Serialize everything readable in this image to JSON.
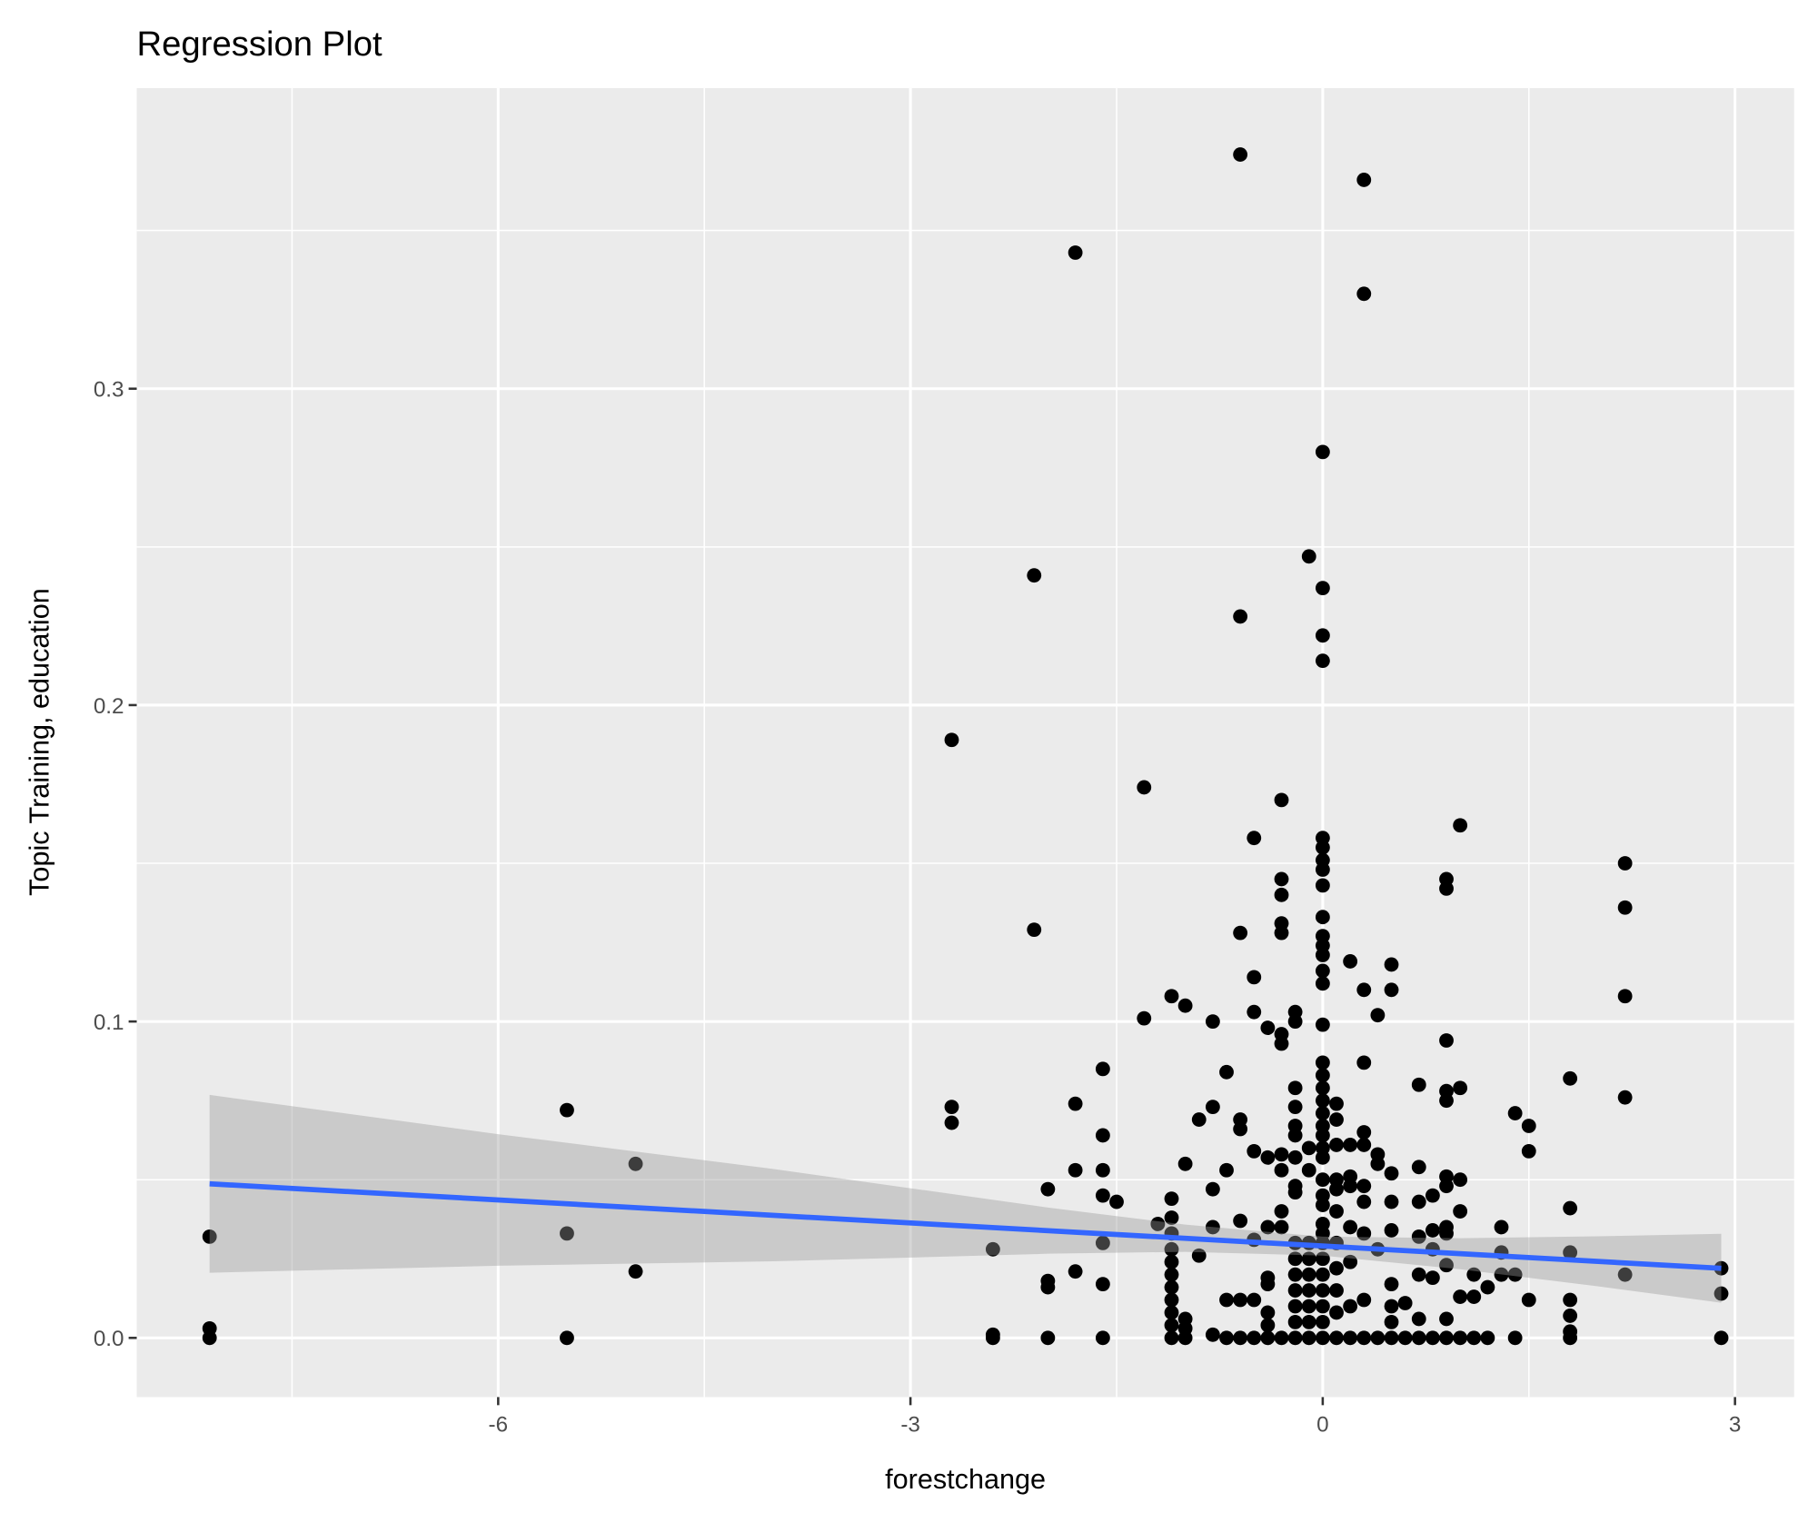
{
  "chart_data": {
    "type": "scatter",
    "title": "Regression Plot",
    "xlabel": "forestchange",
    "ylabel": "Topic Training, education",
    "xlim": [
      -8.63,
      3.43
    ],
    "ylim": [
      -0.0187,
      0.395
    ],
    "x_ticks": [
      -6,
      -3,
      0,
      3
    ],
    "x_tick_labels": [
      "-6",
      "-3",
      "0",
      "3"
    ],
    "x_minor_ticks": [
      -7.5,
      -4.5,
      -1.5,
      1.5
    ],
    "y_ticks": [
      0.0,
      0.1,
      0.2,
      0.3
    ],
    "y_tick_labels": [
      "0.0",
      "0.1",
      "0.2",
      "0.3"
    ],
    "y_minor_ticks": [
      0.05,
      0.15,
      0.25,
      0.35
    ],
    "grid": true,
    "legend": "none",
    "colors": {
      "panel": "#EBEBEB",
      "grid": "#FFFFFF",
      "points": "#000000",
      "fit_line": "#3366FF",
      "ci_band": "#999999"
    },
    "points_by_x": [
      [
        -8.1,
        [
          0.032,
          0.003,
          0.0
        ]
      ],
      [
        -5.5,
        [
          0.072,
          0.033,
          0.0
        ]
      ],
      [
        -5.0,
        [
          0.055,
          0.021
        ]
      ],
      [
        -2.7,
        [
          0.189,
          0.073,
          0.068
        ]
      ],
      [
        -2.4,
        [
          0.028,
          0.001,
          0.0
        ]
      ],
      [
        -2.1,
        [
          0.241,
          0.129
        ]
      ],
      [
        -2.0,
        [
          0.047,
          0.018,
          0.016,
          0.0
        ]
      ],
      [
        -1.8,
        [
          0.343,
          0.074,
          0.053,
          0.021
        ]
      ],
      [
        -1.6,
        [
          0.085,
          0.064,
          0.053,
          0.045,
          0.03,
          0.017,
          0.0
        ]
      ],
      [
        -1.5,
        [
          0.043
        ]
      ],
      [
        -1.3,
        [
          0.174,
          0.101
        ]
      ],
      [
        -1.2,
        [
          0.036
        ]
      ],
      [
        -1.1,
        [
          0.108,
          0.044,
          0.038,
          0.033,
          0.028,
          0.024,
          0.02,
          0.016,
          0.012,
          0.008,
          0.004,
          0.0
        ]
      ],
      [
        -1.0,
        [
          0.105,
          0.055,
          0.006,
          0.003,
          0.0
        ]
      ],
      [
        -0.9,
        [
          0.069,
          0.026
        ]
      ],
      [
        -0.8,
        [
          0.1,
          0.073,
          0.047,
          0.035,
          0.001
        ]
      ],
      [
        -0.7,
        [
          0.084,
          0.053,
          0.012,
          0.0
        ]
      ],
      [
        -0.6,
        [
          0.374,
          0.228,
          0.128,
          0.069,
          0.066,
          0.037,
          0.012,
          0.0
        ]
      ],
      [
        -0.5,
        [
          0.158,
          0.114,
          0.103,
          0.059,
          0.031,
          0.012,
          0.0
        ]
      ],
      [
        -0.4,
        [
          0.098,
          0.057,
          0.035,
          0.019,
          0.017,
          0.008,
          0.004,
          0.0
        ]
      ],
      [
        -0.3,
        [
          0.17,
          0.145,
          0.14,
          0.131,
          0.128,
          0.096,
          0.093,
          0.058,
          0.053,
          0.04,
          0.035,
          0.0
        ]
      ],
      [
        -0.2,
        [
          0.103,
          0.1,
          0.079,
          0.073,
          0.067,
          0.064,
          0.057,
          0.048,
          0.046,
          0.03,
          0.025,
          0.02,
          0.015,
          0.01,
          0.005,
          0.0
        ]
      ],
      [
        -0.1,
        [
          0.247,
          0.06,
          0.053,
          0.03,
          0.025,
          0.02,
          0.015,
          0.01,
          0.005,
          0.0
        ]
      ],
      [
        0.0,
        [
          0.28,
          0.237,
          0.222,
          0.214,
          0.158,
          0.155,
          0.151,
          0.148,
          0.143,
          0.133,
          0.127,
          0.124,
          0.121,
          0.116,
          0.112,
          0.099,
          0.087,
          0.083,
          0.079,
          0.075,
          0.071,
          0.067,
          0.064,
          0.06,
          0.057,
          0.05,
          0.045,
          0.042,
          0.036,
          0.033,
          0.03,
          0.025,
          0.02,
          0.015,
          0.01,
          0.005,
          0.0
        ]
      ],
      [
        0.1,
        [
          0.074,
          0.069,
          0.061,
          0.05,
          0.047,
          0.04,
          0.03,
          0.022,
          0.015,
          0.008,
          0.0
        ]
      ],
      [
        0.2,
        [
          0.119,
          0.061,
          0.051,
          0.048,
          0.035,
          0.024,
          0.01,
          0.0
        ]
      ],
      [
        0.3,
        [
          0.366,
          0.33,
          0.11,
          0.087,
          0.065,
          0.061,
          0.048,
          0.043,
          0.033,
          0.012,
          0.0
        ]
      ],
      [
        0.4,
        [
          0.102,
          0.058,
          0.055,
          0.028,
          0.0
        ]
      ],
      [
        0.5,
        [
          0.118,
          0.11,
          0.052,
          0.043,
          0.034,
          0.017,
          0.01,
          0.005,
          0.0
        ]
      ],
      [
        0.6,
        [
          0.011,
          0.0
        ]
      ],
      [
        0.7,
        [
          0.08,
          0.054,
          0.043,
          0.032,
          0.02,
          0.006,
          0.0
        ]
      ],
      [
        0.8,
        [
          0.045,
          0.034,
          0.028,
          0.019,
          0.0
        ]
      ],
      [
        0.9,
        [
          0.145,
          0.142,
          0.094,
          0.078,
          0.075,
          0.051,
          0.048,
          0.035,
          0.033,
          0.023,
          0.006,
          0.0
        ]
      ],
      [
        1.0,
        [
          0.162,
          0.079,
          0.05,
          0.04,
          0.013,
          0.0
        ]
      ],
      [
        1.1,
        [
          0.02,
          0.013,
          0.0
        ]
      ],
      [
        1.2,
        [
          0.016,
          0.0
        ]
      ],
      [
        1.3,
        [
          0.035,
          0.027,
          0.02
        ]
      ],
      [
        1.4,
        [
          0.071,
          0.02,
          0.0
        ]
      ],
      [
        1.5,
        [
          0.067,
          0.059,
          0.012
        ]
      ],
      [
        1.8,
        [
          0.082,
          0.041,
          0.027,
          0.012,
          0.007,
          0.002,
          0.0
        ]
      ],
      [
        2.2,
        [
          0.15,
          0.136,
          0.108,
          0.076,
          0.02
        ]
      ],
      [
        2.9,
        [
          0.022,
          0.014,
          0.0
        ]
      ]
    ],
    "fit_line": {
      "x": [
        -8.1,
        2.9
      ],
      "y": [
        0.0487,
        0.022
      ]
    },
    "ci_band": {
      "x": [
        -8.1,
        -6,
        -4,
        -2,
        -1,
        0,
        1,
        2,
        2.9
      ],
      "lower": [
        0.0206,
        0.0228,
        0.0242,
        0.0266,
        0.0272,
        0.026,
        0.0217,
        0.0163,
        0.0111
      ],
      "upper": [
        0.0768,
        0.0644,
        0.0534,
        0.0412,
        0.0358,
        0.032,
        0.0315,
        0.0321,
        0.0329
      ]
    }
  }
}
